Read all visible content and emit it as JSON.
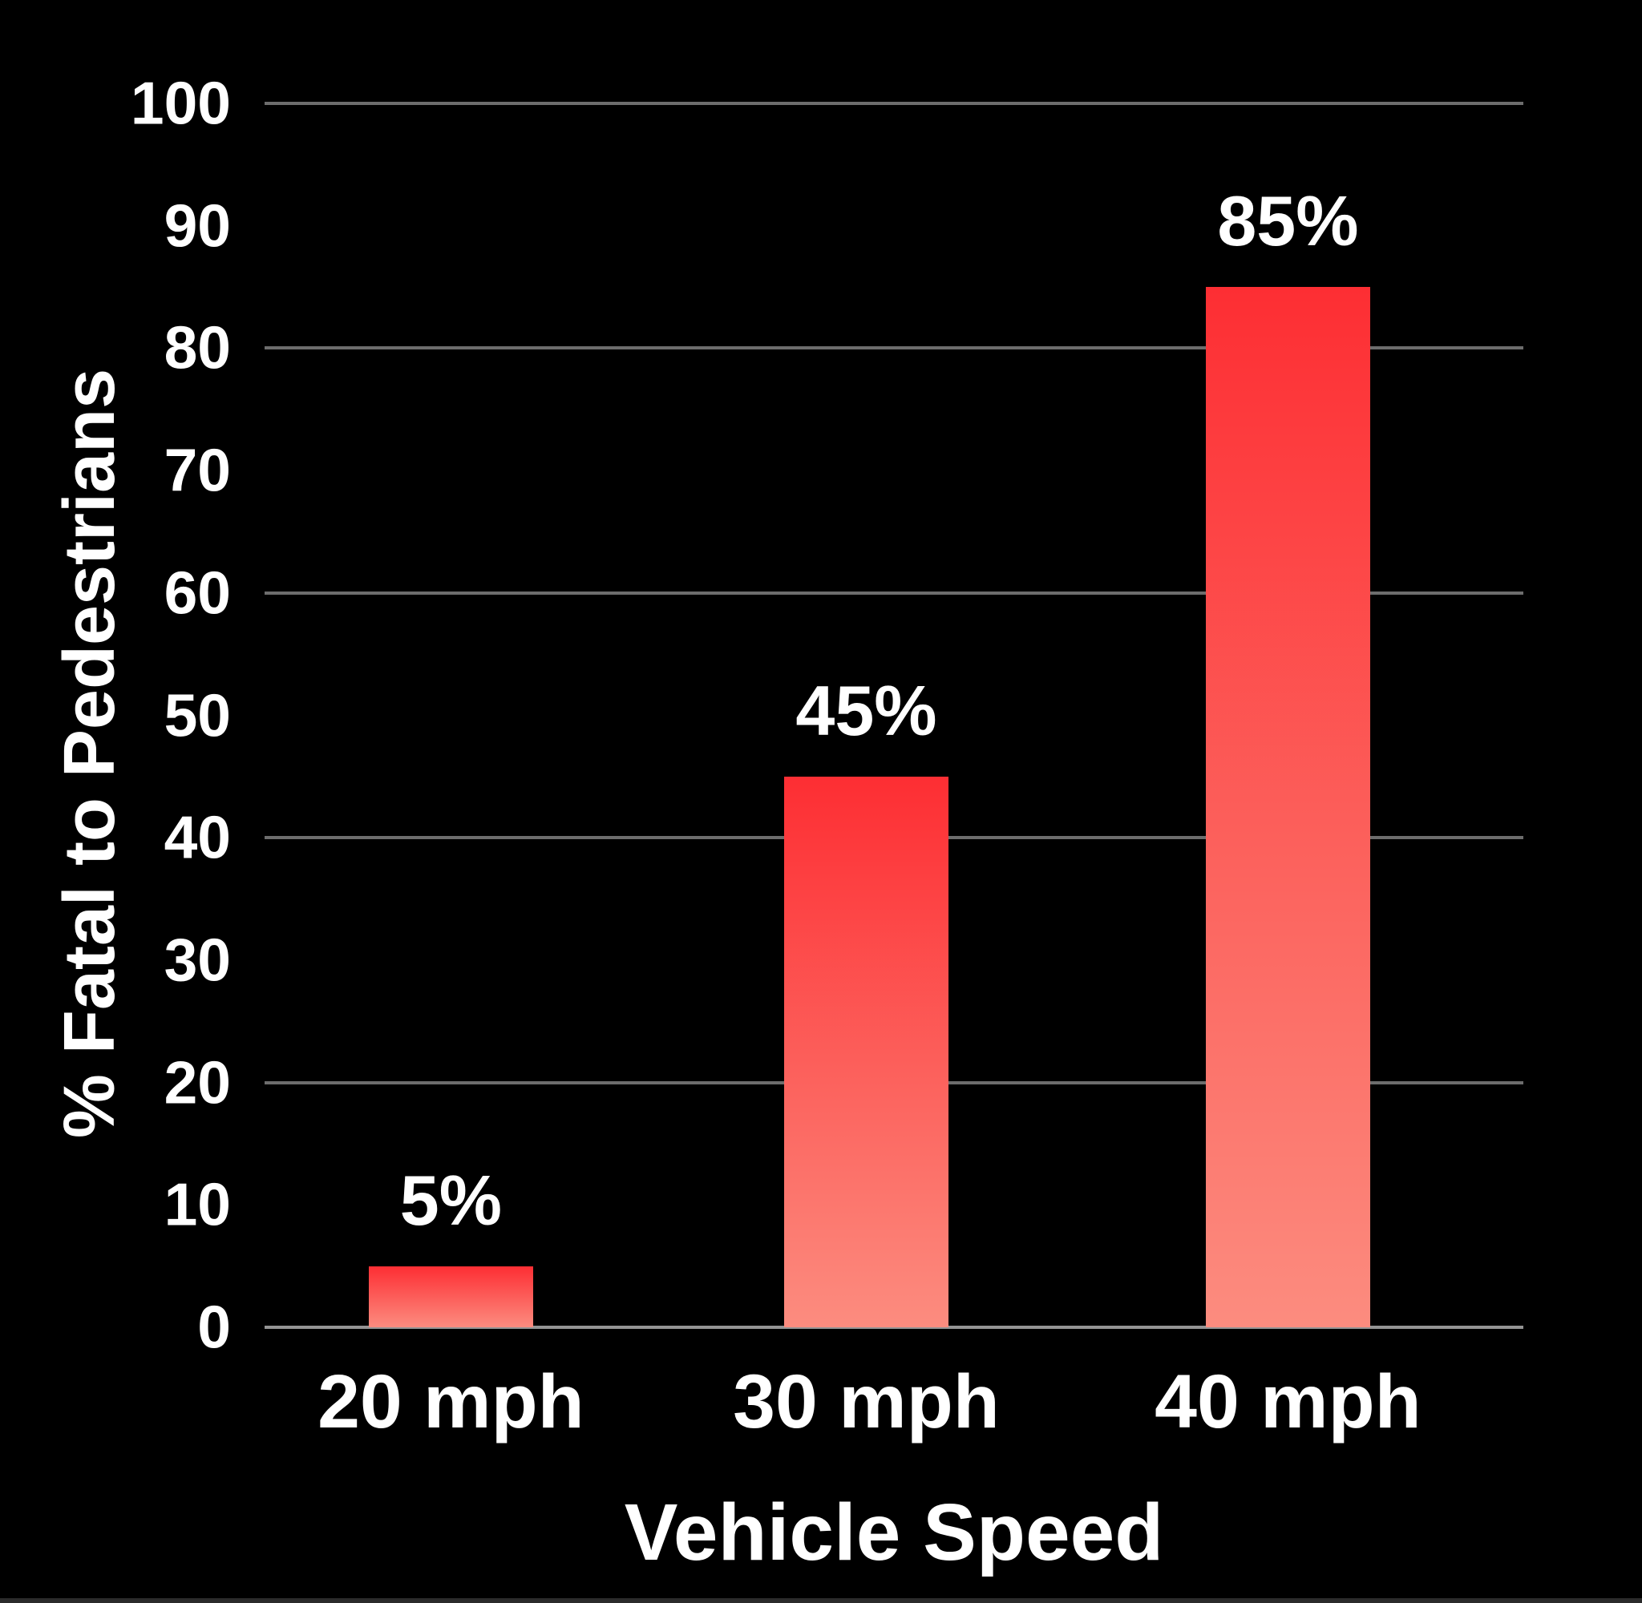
{
  "chart_data": {
    "type": "bar",
    "xlabel": "Vehicle Speed",
    "ylabel": "% Fatal to Pedestrians",
    "categories": [
      "20 mph",
      "30 mph",
      "40 mph"
    ],
    "values": [
      5,
      45,
      85
    ],
    "value_labels": [
      "5%",
      "45%",
      "85%"
    ],
    "ylim": [
      0,
      100
    ],
    "yticks": [
      0,
      10,
      20,
      30,
      40,
      50,
      60,
      70,
      80,
      90,
      100
    ],
    "gridline_values": [
      0,
      20,
      40,
      60,
      80,
      100
    ],
    "grid": "horizontal only",
    "legend": "none",
    "colors": {
      "background": "#000000",
      "text": "#ffffff",
      "gridline": "#6d6d6d",
      "baseline": "#949494",
      "bar_gradient_top": "#fd2e33",
      "bar_gradient_bottom": "#fc8c7f"
    }
  }
}
